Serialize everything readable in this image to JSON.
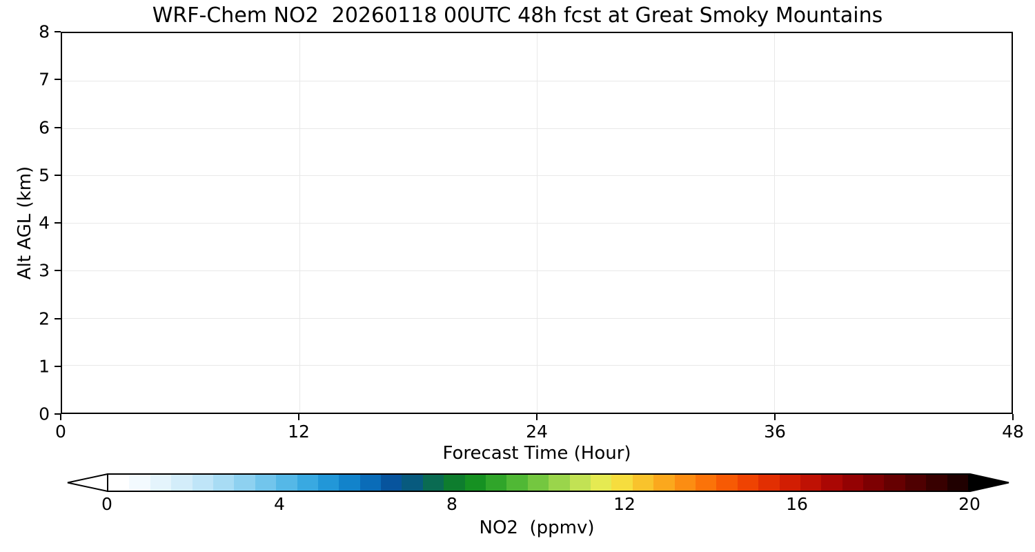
{
  "chart_data": {
    "type": "heatmap",
    "title": "WRF-Chem NO2  20260118 00UTC 48h fcst at Great Smoky Mountains",
    "xlabel": "Forecast Time (Hour)",
    "ylabel": "Alt AGL (km)",
    "xlim": [
      0,
      48
    ],
    "ylim": [
      0,
      8
    ],
    "xticks": [
      0,
      12,
      24,
      36,
      48
    ],
    "yticks": [
      0,
      1,
      2,
      3,
      4,
      5,
      6,
      7,
      8
    ],
    "grid": true,
    "grid_color": "#e8e8e8",
    "plot_background": "#ffffff",
    "values": [],
    "colorbar": {
      "label": "NO2  (ppmv)",
      "min": 0,
      "max": 20,
      "ticks": [
        0,
        4,
        8,
        12,
        16,
        20
      ],
      "extend": "both",
      "extend_low_color": "#ffffff",
      "extend_high_color": "#000000",
      "colors": [
        "#ffffff",
        "#f3fafe",
        "#e4f4fc",
        "#d3edfa",
        "#bfe5f8",
        "#a8dcf4",
        "#8ed1f0",
        "#72c5ec",
        "#55b8e7",
        "#39a9e1",
        "#2297d8",
        "#1283cb",
        "#0a6cb8",
        "#07549d",
        "#075a7e",
        "#0a6b52",
        "#0e7d2e",
        "#169122",
        "#30a52a",
        "#50b835",
        "#74c740",
        "#9ad54b",
        "#c2e254",
        "#e5ea52",
        "#f6dd3e",
        "#f9c32c",
        "#fba81d",
        "#fc8d12",
        "#fb7309",
        "#f75a04",
        "#ef4302",
        "#e22f02",
        "#d21e03",
        "#bf1104",
        "#aa0704",
        "#940203",
        "#7d0002",
        "#660001",
        "#4f0001",
        "#380000",
        "#200000"
      ]
    }
  }
}
